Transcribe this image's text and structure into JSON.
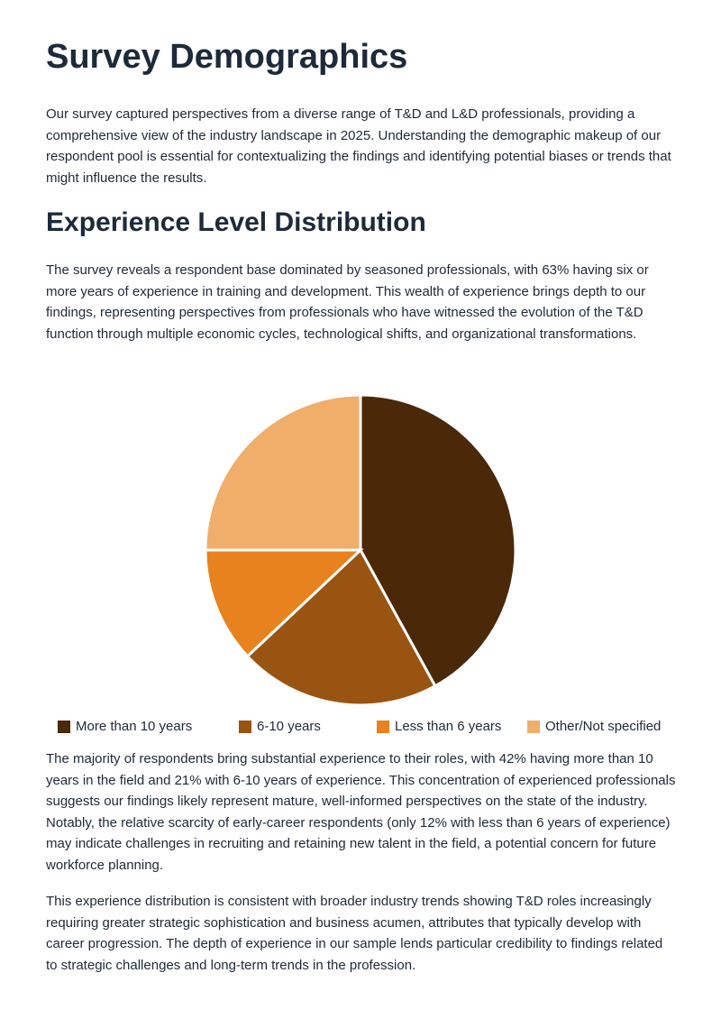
{
  "header": {
    "title": "Survey Demographics"
  },
  "intro": "Our survey captured perspectives from a diverse range of T&D and L&D professionals, providing a comprehensive view of the industry landscape in 2025. Understanding the demographic makeup of our respondent pool is essential for contextualizing the findings and identifying potential biases or trends that might influence the results.",
  "section": {
    "title": "Experience Level Distribution",
    "paragraphs": [
      "The survey reveals a respondent base dominated by seasoned professionals, with 63% having six or more years of experience in training and development. This wealth of experience brings depth to our findings, representing perspectives from professionals who have witnessed the evolution of the T&D function through multiple economic cycles, technological shifts, and organizational transformations.",
      "The majority of respondents bring substantial experience to their roles, with 42% having more than 10 years in the field and 21% with 6-10 years of experience. This concentration of experienced professionals suggests our findings likely represent mature, well-informed perspectives on the state of the industry. Notably, the relative scarcity of early-career respondents (only 12% with less than 6 years of experience) may indicate challenges in recruiting and retaining new talent in the field, a potential concern for future workforce planning.",
      "This experience distribution is consistent with broader industry trends showing T&D roles increasingly requiring greater strategic sophistication and business acumen, attributes that typically develop with career progression. The depth of experience in our sample lends particular credibility to findings related to strategic challenges and long-term trends in the profession."
    ]
  },
  "chart_data": {
    "type": "pie",
    "categories": [
      "More than 10 years",
      "6-10 years",
      "Less than 6 years",
      "Other/Not specified"
    ],
    "values": [
      42,
      21,
      12,
      25
    ],
    "colors": [
      "#4a2808",
      "#9a5412",
      "#e8821e",
      "#f0ae6a"
    ],
    "legend": "bottom"
  }
}
